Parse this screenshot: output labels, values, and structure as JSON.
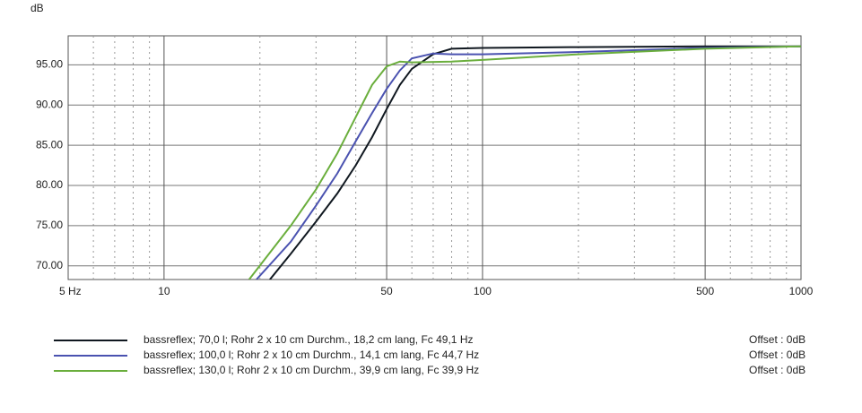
{
  "chart_data": {
    "type": "line",
    "y_label": "dB",
    "log_x": true,
    "xlim": [
      5,
      1000
    ],
    "xticks": [
      {
        "value": 5,
        "label": "5 Hz"
      },
      10,
      50,
      100,
      500,
      1000
    ],
    "minor_xticks": [
      6,
      7,
      8,
      9,
      20,
      30,
      40,
      60,
      70,
      80,
      90,
      200,
      300,
      400,
      600,
      700,
      800,
      900
    ],
    "ylim": [
      68.3,
      98.6
    ],
    "yticks": [
      {
        "value": 70,
        "label": "70.00"
      },
      {
        "value": 75,
        "label": "75.00"
      },
      {
        "value": 80,
        "label": "80.00"
      },
      {
        "value": 85,
        "label": "85.00"
      },
      {
        "value": 90,
        "label": "90.00"
      },
      {
        "value": 95,
        "label": "95.00"
      }
    ],
    "grid": true,
    "legend": "bottom",
    "series": [
      {
        "name": "bassreflex; 70,0 l; Rohr 2 x 10 cm Durchm., 18,2 cm lang,  Fc 49,1 Hz",
        "offset": "Offset : 0dB",
        "color": "#101820",
        "x": [
          21.5,
          25,
          30,
          35,
          40,
          45,
          50,
          55,
          60,
          70,
          80,
          100,
          200,
          500,
          1000
        ],
        "values": [
          68.3,
          71.5,
          75.5,
          79,
          82.5,
          86,
          89.5,
          92.5,
          94.5,
          96.3,
          97,
          97.1,
          97.2,
          97.3,
          97.3
        ]
      },
      {
        "name": "bassreflex; 100,0 l; Rohr 2 x 10 cm Durchm., 14,1 cm lang,  Fc 44,7 Hz",
        "offset": "Offset : 0dB",
        "color": "#4a52b0",
        "x": [
          19.5,
          25,
          30,
          35,
          40,
          45,
          50,
          55,
          60,
          70,
          80,
          100,
          200,
          500,
          1000
        ],
        "values": [
          68.3,
          73,
          77.5,
          81.5,
          85.5,
          89,
          92,
          94.3,
          95.8,
          96.4,
          96.3,
          96.3,
          96.6,
          97.1,
          97.3
        ]
      },
      {
        "name": "bassreflex; 130,0 l; Rohr 2 x 10 cm Durchm., 39,9 cm lang,  Fc 39,9 Hz",
        "offset": "Offset : 0dB",
        "color": "#6aae3c",
        "x": [
          18.5,
          25,
          30,
          35,
          40,
          45,
          50,
          55,
          60,
          80,
          100,
          200,
          500,
          1000
        ],
        "values": [
          68.3,
          75,
          79.5,
          84,
          88.5,
          92.5,
          94.8,
          95.4,
          95.3,
          95.4,
          95.6,
          96.3,
          97,
          97.3
        ]
      }
    ]
  }
}
